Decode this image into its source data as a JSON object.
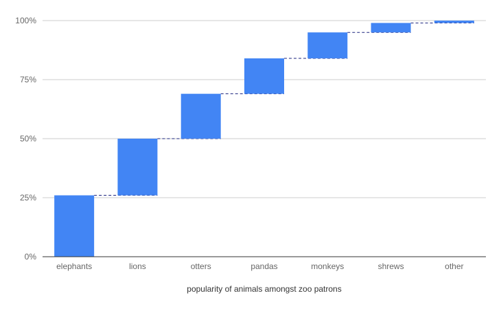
{
  "chart_data": {
    "type": "waterfall",
    "title": "",
    "xlabel": "popularity of animals amongst zoo patrons",
    "ylabel": "",
    "categories": [
      "elephants",
      "lions",
      "otters",
      "pandas",
      "monkeys",
      "shrews",
      "other"
    ],
    "series": [
      {
        "values": [
          26,
          24,
          19,
          15,
          11,
          4,
          1
        ]
      }
    ],
    "cumulative_ends": [
      26,
      50,
      69,
      84,
      95,
      99,
      100
    ],
    "ylim": [
      0,
      100
    ],
    "yticks": [
      0,
      25,
      50,
      75,
      100
    ],
    "ytick_labels": [
      "0%",
      "25%",
      "50%",
      "75%",
      "100%"
    ],
    "grid": true,
    "legend": "none",
    "colors": {
      "bar": "#4285f4",
      "gridline": "#cccccc",
      "baseline": "#333333",
      "connector": "#1a237e",
      "tick_text": "#666666",
      "axis_title": "#333333"
    }
  }
}
